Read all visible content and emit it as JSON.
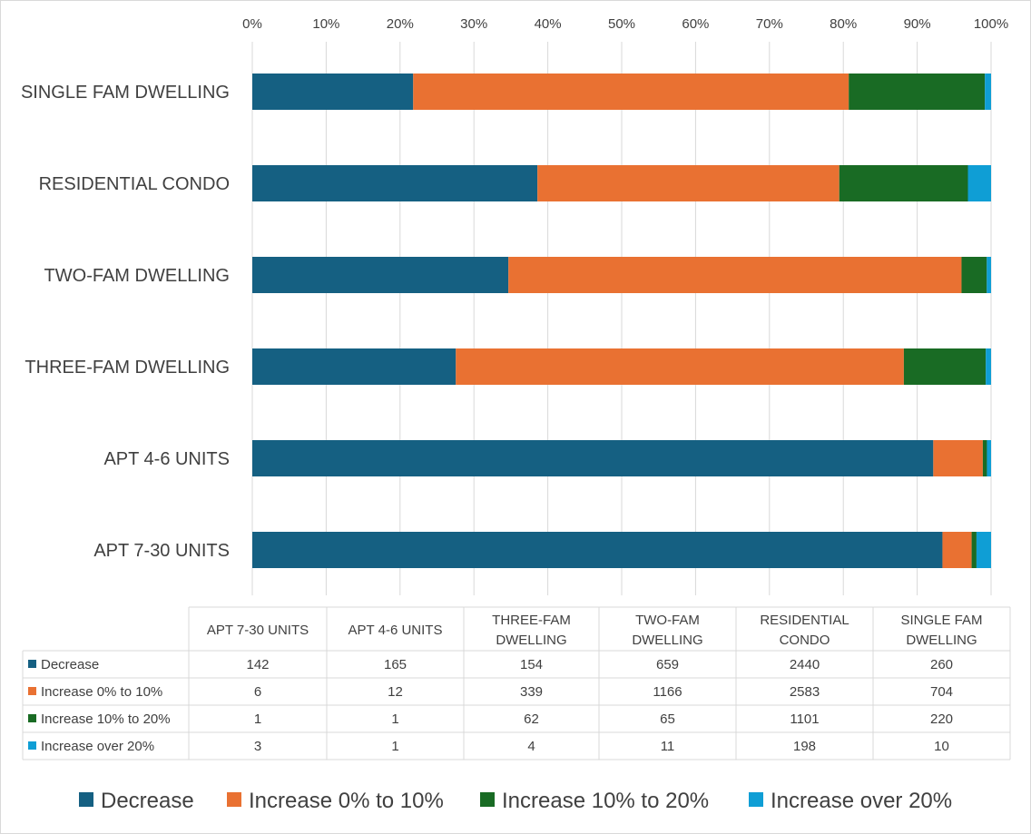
{
  "chart_data": {
    "type": "bar",
    "orientation": "horizontal",
    "stacking": "percent",
    "categories": [
      "APT 7-30 UNITS",
      "APT 4-6 UNITS",
      "THREE-FAM DWELLING",
      "TWO-FAM DWELLING",
      "RESIDENTIAL CONDO",
      "SINGLE FAM DWELLING"
    ],
    "series": [
      {
        "name": "Decrease",
        "color": "#156082",
        "values": [
          142,
          165,
          154,
          659,
          2440,
          260
        ]
      },
      {
        "name": "Increase 0% to 10%",
        "color": "#E97132",
        "values": [
          6,
          12,
          339,
          1166,
          2583,
          704
        ]
      },
      {
        "name": "Increase 10% to 20%",
        "color": "#196B24",
        "values": [
          1,
          1,
          62,
          65,
          1101,
          220
        ]
      },
      {
        "name": "Increase over 20%",
        "color": "#0F9ED5",
        "values": [
          3,
          1,
          4,
          11,
          198,
          10
        ]
      }
    ],
    "xlim": [
      0,
      100
    ],
    "x_ticks": [
      "0%",
      "10%",
      "20%",
      "30%",
      "40%",
      "50%",
      "60%",
      "70%",
      "80%",
      "90%",
      "100%"
    ],
    "x_axis_position": "top",
    "grid": true,
    "legend": "bottom",
    "data_table": true,
    "title": "",
    "xlabel": "",
    "ylabel": ""
  }
}
